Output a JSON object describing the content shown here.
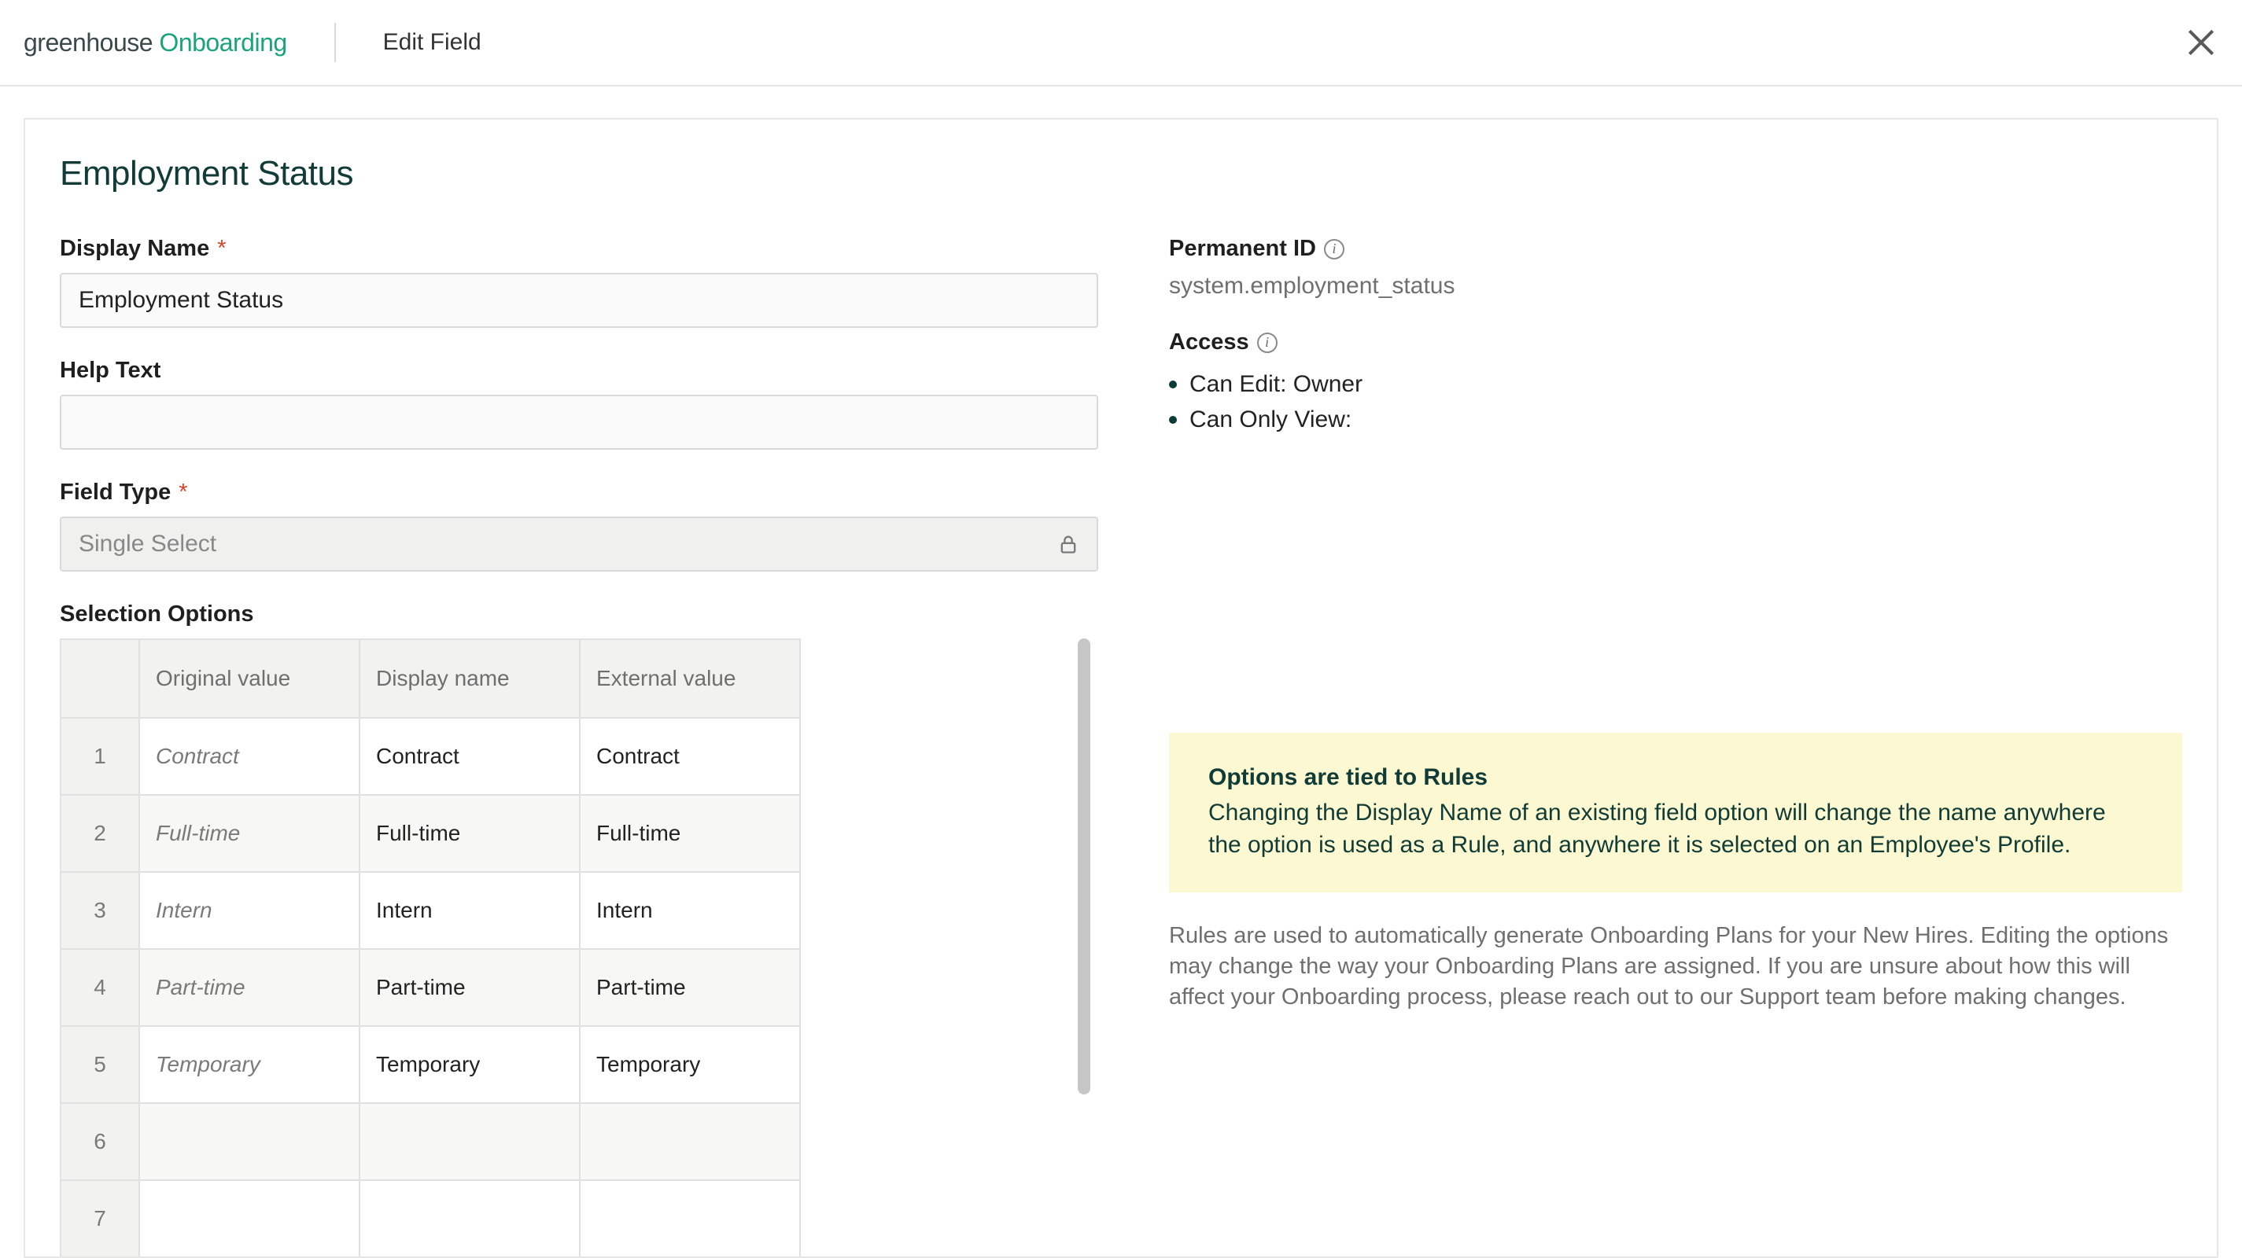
{
  "header": {
    "brand_left": "greenhouse",
    "brand_right": "Onboarding",
    "crumb": "Edit Field"
  },
  "page": {
    "title": "Employment Status"
  },
  "left": {
    "display_name_label": "Display Name",
    "display_name_value": "Employment Status",
    "help_text_label": "Help Text",
    "help_text_value": "",
    "field_type_label": "Field Type",
    "field_type_value": "Single Select",
    "selection_options_label": "Selection Options",
    "columns": {
      "original": "Original value",
      "display": "Display name",
      "external": "External value"
    },
    "rows": [
      {
        "n": "1",
        "original": "Contract",
        "display": "Contract",
        "external": "Contract"
      },
      {
        "n": "2",
        "original": "Full-time",
        "display": "Full-time",
        "external": "Full-time"
      },
      {
        "n": "3",
        "original": "Intern",
        "display": "Intern",
        "external": "Intern"
      },
      {
        "n": "4",
        "original": "Part-time",
        "display": "Part-time",
        "external": "Part-time"
      },
      {
        "n": "5",
        "original": "Temporary",
        "display": "Temporary",
        "external": "Temporary"
      },
      {
        "n": "6",
        "original": "",
        "display": "",
        "external": ""
      },
      {
        "n": "7",
        "original": "",
        "display": "",
        "external": ""
      }
    ]
  },
  "right": {
    "permanent_id_label": "Permanent ID",
    "permanent_id_value": "system.employment_status",
    "access_label": "Access",
    "access_items": [
      "Can Edit: Owner",
      "Can Only View:"
    ],
    "callout_title": "Options are tied to Rules",
    "callout_body": "Changing the Display Name of an existing field option will change the name anywhere the option is used as a Rule, and anywhere it is selected on an Employee's Profile.",
    "rules_note": "Rules are used to automatically generate Onboarding Plans for your New Hires. Editing the options may change the way your Onboarding Plans are assigned. If you are unsure about how this will affect your Onboarding process, please reach out to our Support team before making changes."
  },
  "colors": {
    "brand_green": "#1aa578",
    "brand_dark": "#113b36",
    "border": "#e6e6e6",
    "input_border": "#d9d9d9",
    "muted_text": "#6f6f6f",
    "callout_bg": "#fbf8d2",
    "required": "#d8432b",
    "scroll_thumb": "#c6c6c6"
  }
}
